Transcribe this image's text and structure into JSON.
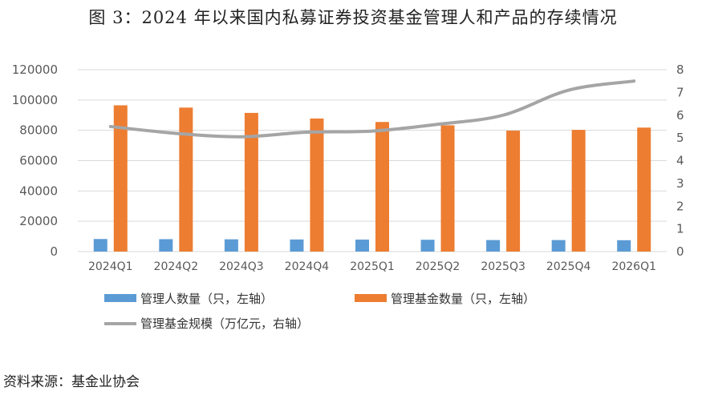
{
  "title": "图 3：2024 年以来国内私募证券投资基金管理人和产品的存续情况",
  "source": "资料来源：基金业协会",
  "chart_data": {
    "type": "bar",
    "categories": [
      "2024Q1",
      "2024Q2",
      "2024Q3",
      "2024Q4",
      "2025Q1",
      "2025Q2",
      "2025Q3",
      "2025Q4",
      "2026Q1"
    ],
    "series": [
      {
        "name": "管理人数量（只，左轴）",
        "type": "bar",
        "axis": "left",
        "color": "#5B9BD5",
        "values": [
          8300,
          8200,
          8100,
          8000,
          7900,
          7800,
          7600,
          7600,
          7500
        ]
      },
      {
        "name": "管理基金数量（只，左轴）",
        "type": "bar",
        "axis": "left",
        "color": "#ED7D31",
        "values": [
          96500,
          95000,
          91500,
          87800,
          85500,
          83300,
          79800,
          80300,
          81800
        ]
      },
      {
        "name": "管理基金规模（万亿元，右轴）",
        "type": "line",
        "axis": "right",
        "color": "#A5A5A5",
        "values": [
          5.5,
          5.2,
          5.05,
          5.25,
          5.3,
          5.6,
          6.0,
          7.1,
          7.5
        ]
      }
    ],
    "y_left": {
      "min": 0,
      "max": 120000,
      "ticks": [
        0,
        20000,
        40000,
        60000,
        80000,
        100000,
        120000
      ]
    },
    "y_right": {
      "min": 0,
      "max": 8,
      "ticks": [
        0,
        1,
        2,
        3,
        4,
        5,
        6,
        7,
        8
      ]
    },
    "grid": true,
    "legend_position": "bottom"
  }
}
